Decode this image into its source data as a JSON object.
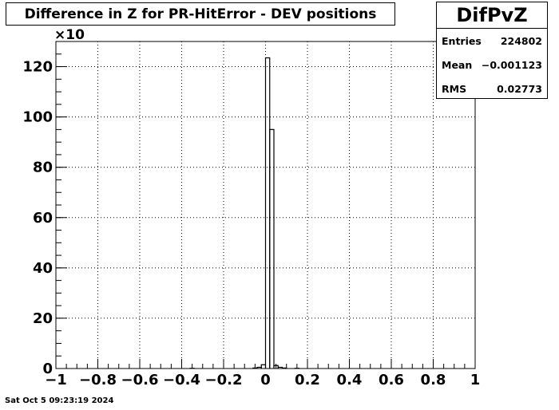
{
  "title": "Difference in Z for PR-HitError - DEV positions",
  "stats": {
    "name": "DifPvZ",
    "entries_label": "Entries",
    "entries_value": "224802",
    "mean_label": "Mean",
    "mean_value": "−0.001123",
    "rms_label": "RMS",
    "rms_value": "0.02773"
  },
  "timestamp": "Sat Oct  5 09:23:19 2024",
  "chart_data": {
    "type": "bar",
    "histogram": true,
    "title": "Difference in Z for PR-HitError - DEV positions",
    "xlabel": "",
    "ylabel": "",
    "y_multiplier_label": "×10",
    "xlim": [
      -1,
      1
    ],
    "ylim": [
      0,
      130
    ],
    "grid": true,
    "x_ticks": [
      -1,
      -0.8,
      -0.6,
      -0.4,
      -0.2,
      0,
      0.2,
      0.4,
      0.6,
      0.8,
      1
    ],
    "x_tick_labels": [
      "−1",
      "−0.8",
      "−0.6",
      "−0.4",
      "−0.2",
      "0",
      "0.2",
      "0.4",
      "0.6",
      "0.8",
      "1"
    ],
    "y_ticks": [
      0,
      20,
      40,
      60,
      80,
      100,
      120
    ],
    "y_tick_labels": [
      "0",
      "20",
      "40",
      "60",
      "80",
      "100",
      "120"
    ],
    "bin_width": 0.02,
    "bins": [
      {
        "x0": -0.36,
        "value": 0.1
      },
      {
        "x0": -0.06,
        "value": 0.2
      },
      {
        "x0": -0.04,
        "value": 0.5
      },
      {
        "x0": -0.02,
        "value": 1.5
      },
      {
        "x0": 0.0,
        "value": 123.5
      },
      {
        "x0": 0.02,
        "value": 95.0
      },
      {
        "x0": 0.04,
        "value": 1.2
      },
      {
        "x0": 0.06,
        "value": 0.5
      },
      {
        "x0": 0.08,
        "value": 0.2
      },
      {
        "x0": 0.14,
        "value": 0.1
      }
    ]
  }
}
